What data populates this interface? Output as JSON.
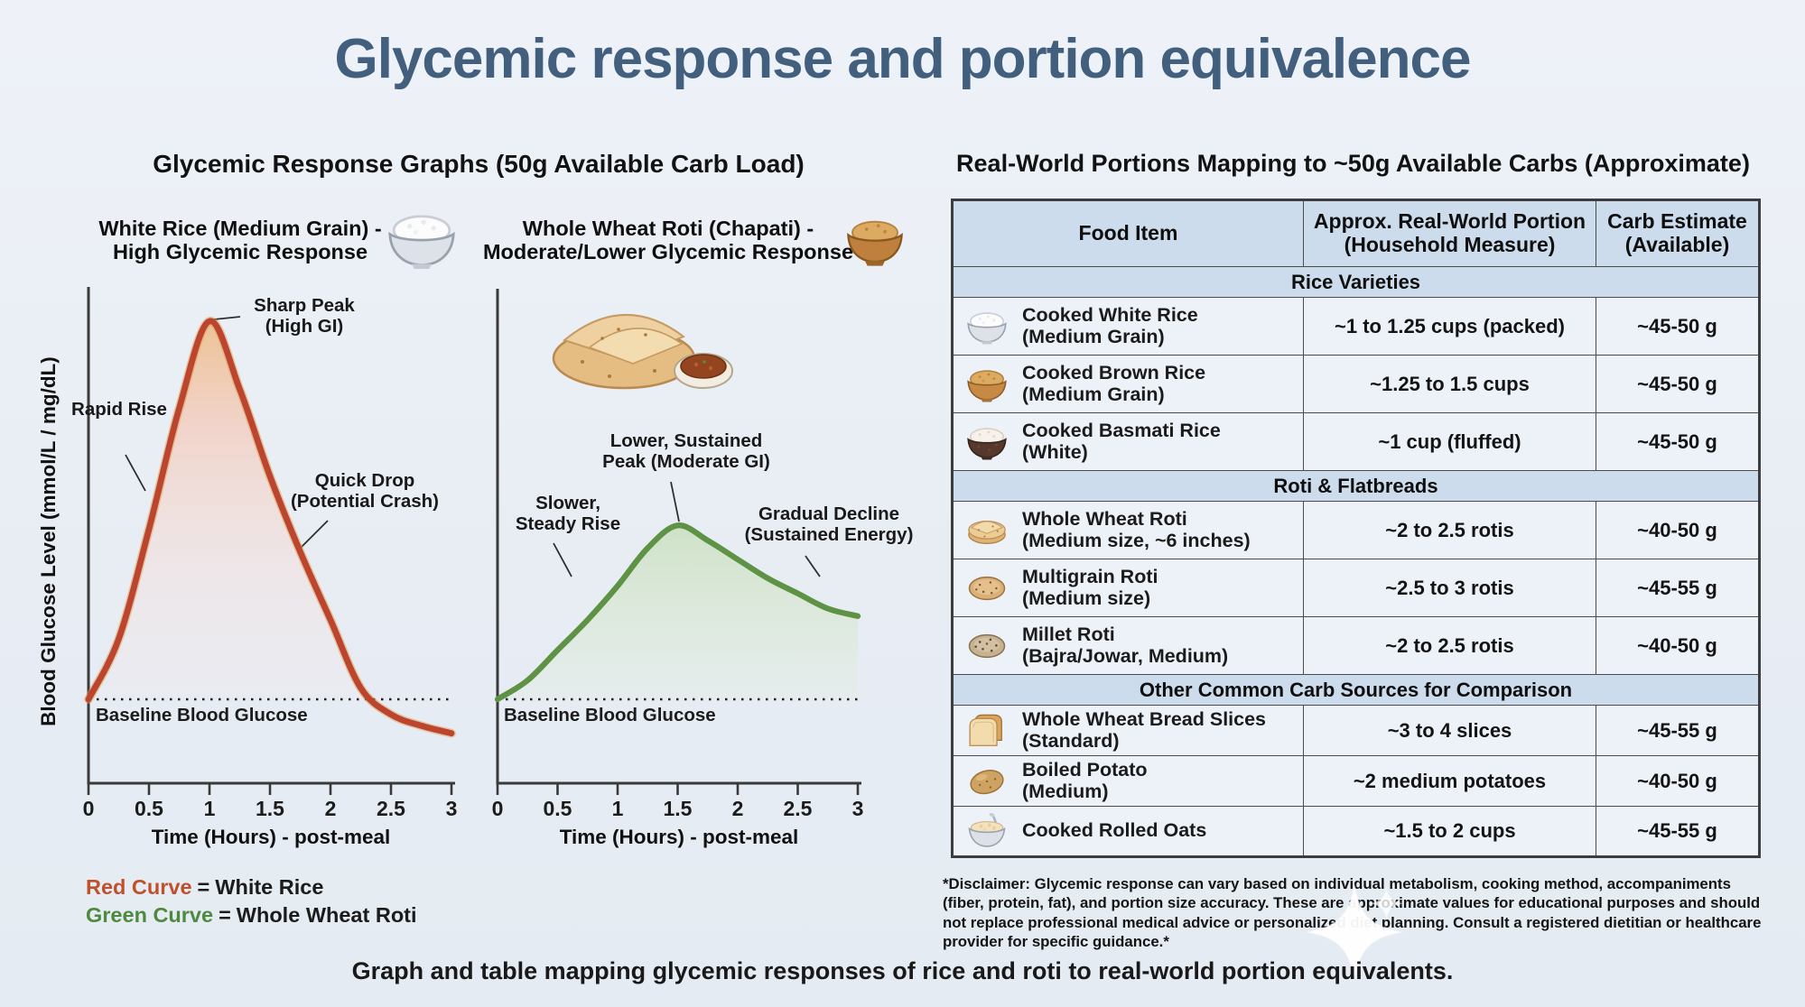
{
  "page": {
    "title": "Glycemic response and portion equivalence",
    "caption": "Graph and table mapping glycemic responses of rice and roti to real-world portion equivalents."
  },
  "charts_section": {
    "header": "Glycemic Response Graphs (50g Available Carb Load)",
    "y_axis_label": "Blood Glucose Level (mmol/L / mg/dL)",
    "x_axis_label": "Time (Hours) - post-meal",
    "baseline_label": "Baseline Blood Glucose",
    "legend": [
      {
        "curve": "Red Curve",
        "equals": "=",
        "food": "White Rice",
        "color": "#c0502c"
      },
      {
        "curve": "Green Curve",
        "equals": "=",
        "food": "Whole Wheat Roti",
        "color": "#4d8a3f"
      }
    ]
  },
  "chart_data": [
    {
      "type": "area",
      "title": "White Rice (Medium Grain) -\nHigh Glycemic Response",
      "icon": "white-rice-bowl",
      "curve_color": "#bc4530",
      "x_label": "Time (Hours) - post-meal",
      "x_ticks": [
        "0",
        "0.5",
        "1",
        "1.5",
        "2",
        "2.5",
        "3"
      ],
      "x": [
        0,
        0.25,
        0.5,
        0.75,
        1,
        1.25,
        1.5,
        1.75,
        2,
        2.25,
        2.5,
        2.75,
        3
      ],
      "y_relative_glucose": [
        0,
        16,
        45,
        77,
        100,
        82,
        59,
        39,
        21,
        3,
        -4,
        -7,
        -9
      ],
      "y_axis_note": "no numeric scale shown; baseline = 0, peak = 100 (relative)",
      "baseline_value": 0,
      "annotations": [
        "Sharp Peak\n(High GI)",
        "Rapid Rise",
        "Quick Drop\n(Potential Crash)"
      ]
    },
    {
      "type": "area",
      "title": "Whole Wheat Roti (Chapati) -\nModerate/Lower Glycemic Response",
      "icon": "grain-bowl",
      "curve_color": "#5e9245",
      "x_label": "Time (Hours) - post-meal",
      "x_ticks": [
        "0",
        "0.5",
        "1",
        "1.5",
        "2",
        "2.5",
        "3"
      ],
      "x": [
        0,
        0.25,
        0.5,
        0.75,
        1,
        1.25,
        1.5,
        1.75,
        2,
        2.25,
        2.5,
        2.75,
        3
      ],
      "y_relative_glucose": [
        0,
        5,
        13,
        21,
        30,
        40,
        46,
        42,
        37,
        32,
        28,
        24,
        22
      ],
      "y_axis_note": "no numeric scale shown; same relative scale as white rice chart",
      "baseline_value": 0,
      "annotations": [
        "Slower,\nSteady Rise",
        "Lower, Sustained\nPeak (Moderate GI)",
        "Gradual Decline\n(Sustained Energy)"
      ]
    }
  ],
  "table": {
    "header": "Real-World Portions Mapping to ~50g Available Carbs (Approximate)",
    "columns": [
      "Food Item",
      "Approx. Real-World Portion\n(Household Measure)",
      "Carb Estimate\n(Available)"
    ],
    "sections": [
      {
        "title": "Rice Varieties",
        "rows": [
          {
            "icon": "white-rice-bowl",
            "food": "Cooked White Rice\n(Medium Grain)",
            "portion": "~1 to 1.25 cups (packed)",
            "carbs": "~45-50 g"
          },
          {
            "icon": "brown-rice-bowl",
            "food": "Cooked Brown Rice\n(Medium Grain)",
            "portion": "~1.25 to 1.5 cups",
            "carbs": "~45-50 g"
          },
          {
            "icon": "basmati-rice-bowl",
            "food": "Cooked Basmati Rice\n(White)",
            "portion": "~1 cup (fluffed)",
            "carbs": "~45-50 g"
          }
        ]
      },
      {
        "title": "Roti & Flatbreads",
        "rows": [
          {
            "icon": "whole-wheat-roti",
            "food": "Whole Wheat Roti\n(Medium size, ~6 inches)",
            "portion": "~2 to 2.5 rotis",
            "carbs": "~40-50 g"
          },
          {
            "icon": "multigrain-roti",
            "food": "Multigrain Roti\n(Medium size)",
            "portion": "~2.5 to 3 rotis",
            "carbs": "~45-55 g"
          },
          {
            "icon": "millet-roti",
            "food": "Millet Roti\n(Bajra/Jowar, Medium)",
            "portion": "~2 to 2.5 rotis",
            "carbs": "~40-50 g"
          }
        ]
      },
      {
        "title": "Other Common Carb Sources for Comparison",
        "rows": [
          {
            "icon": "bread-slices",
            "food": "Whole Wheat Bread Slices\n(Standard)",
            "portion": "~3 to 4 slices",
            "carbs": "~45-55 g"
          },
          {
            "icon": "boiled-potato",
            "food": "Boiled Potato\n(Medium)",
            "portion": "~2 medium potatoes",
            "carbs": "~40-50 g"
          },
          {
            "icon": "rolled-oats",
            "food": "Cooked Rolled Oats",
            "portion": "~1.5 to 2 cups",
            "carbs": "~45-55 g"
          }
        ]
      }
    ],
    "disclaimer": "*Disclaimer: Glycemic response can vary based on individual metabolism, cooking method, accompaniments (fiber, protein, fat), and portion size accuracy. These are approximate values for educational purposes and should not replace professional medical advice or personalized diet planning. Consult a registered dietitian or healthcare provider for specific guidance.*"
  }
}
